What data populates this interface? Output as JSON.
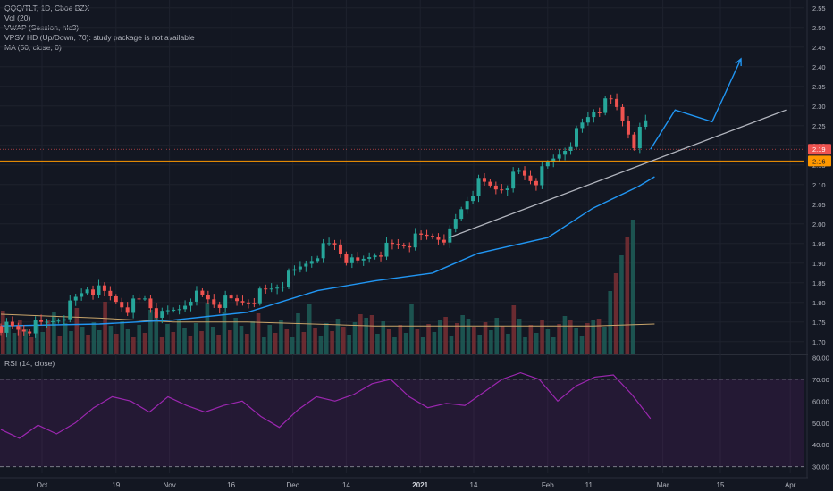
{
  "legend": {
    "symbol": "QQQ/TLT, 1D, Cboe BZX",
    "volume": "Vol (20)",
    "vwap": "VWAP (Session, hlc3)",
    "vpsv": "VPSV HD (Up/Down, 70): study package is not available",
    "ma": "MA (50, close, 0)"
  },
  "rsi_legend": "RSI (14, close)",
  "price_tags": {
    "last": "2.19",
    "level": "2.16"
  },
  "colors": {
    "background": "#131722",
    "up": "#26a69a",
    "down": "#ef5350",
    "ma": "#2196f3",
    "trendline": "#b2b5be",
    "hline": "#ff9800",
    "rsi": "#9c27b0",
    "projection": "#2196f3"
  },
  "chart_data": [
    {
      "type": "candlestick",
      "title": "QQQ/TLT, 1D, Cboe BZX",
      "y_axis_ticks": [
        "2.55",
        "2.50",
        "2.45",
        "2.40",
        "2.35",
        "2.30",
        "2.25",
        "2.20",
        "2.15",
        "2.10",
        "2.05",
        "2.00",
        "1.95",
        "1.90",
        "1.85",
        "1.80",
        "1.75",
        "1.70"
      ],
      "x_axis_ticks": [
        "Oct",
        "19",
        "Nov",
        "16",
        "Dec",
        "14",
        "2021",
        "14",
        "Feb",
        "11",
        "Mar",
        "15",
        "Apr"
      ],
      "ylim": [
        1.67,
        2.57
      ],
      "series": [
        {
          "name": "MA (50, close, 0)",
          "points": [
            [
              "2020-09-21",
              1.74
            ],
            [
              "2020-10-15",
              1.745
            ],
            [
              "2020-11-02",
              1.755
            ],
            [
              "2020-11-20",
              1.775
            ],
            [
              "2020-12-07",
              1.83
            ],
            [
              "2020-12-21",
              1.855
            ],
            [
              "2021-01-04",
              1.875
            ],
            [
              "2021-01-15",
              1.925
            ],
            [
              "2021-02-01",
              1.965
            ],
            [
              "2021-02-12",
              2.04
            ],
            [
              "2021-02-23",
              2.095
            ],
            [
              "2021-02-27",
              2.12
            ]
          ]
        },
        {
          "name": "VWAP (Session, hlc3)",
          "points": [
            [
              "2020-09-21",
              1.77
            ],
            [
              "2020-10-15",
              1.76
            ],
            [
              "2020-11-02",
              1.75
            ],
            [
              "2020-11-20",
              1.75
            ],
            [
              "2020-12-21",
              1.74
            ],
            [
              "2021-01-15",
              1.74
            ],
            [
              "2021-02-12",
              1.74
            ],
            [
              "2021-02-27",
              1.745
            ]
          ]
        }
      ],
      "closes": [
        [
          "2020-09-21",
          1.74
        ],
        [
          "2020-09-25",
          1.73
        ],
        [
          "2020-10-01",
          1.74
        ],
        [
          "2020-10-06",
          1.77
        ],
        [
          "2020-10-12",
          1.84
        ],
        [
          "2020-10-16",
          1.82
        ],
        [
          "2020-10-22",
          1.79
        ],
        [
          "2020-10-26",
          1.81
        ],
        [
          "2020-10-30",
          1.76
        ],
        [
          "2020-11-04",
          1.79
        ],
        [
          "2020-11-06",
          1.82
        ],
        [
          "2020-11-10",
          1.81
        ],
        [
          "2020-11-12",
          1.8
        ],
        [
          "2020-11-18",
          1.8
        ],
        [
          "2020-11-25",
          1.83
        ],
        [
          "2020-12-01",
          1.87
        ],
        [
          "2020-12-07",
          1.93
        ],
        [
          "2020-12-11",
          1.95
        ],
        [
          "2020-12-16",
          1.89
        ],
        [
          "2020-12-21",
          1.93
        ],
        [
          "2020-12-28",
          1.95
        ],
        [
          "2021-01-04",
          1.97
        ],
        [
          "2021-01-08",
          1.97
        ],
        [
          "2021-01-12",
          2.06
        ],
        [
          "2021-01-15",
          2.1
        ],
        [
          "2021-01-20",
          2.09
        ],
        [
          "2021-01-25",
          2.13
        ],
        [
          "2021-01-29",
          2.11
        ],
        [
          "2021-02-03",
          2.17
        ],
        [
          "2021-02-08",
          2.23
        ],
        [
          "2021-02-12",
          2.29
        ],
        [
          "2021-02-17",
          2.31
        ],
        [
          "2021-02-22",
          2.21
        ],
        [
          "2021-02-25",
          2.26
        ],
        [
          "2021-02-26",
          2.19
        ]
      ],
      "annotations": {
        "horizontal_line": 2.16,
        "trendline": [
          [
            "2021-01-08",
            1.965
          ],
          [
            "2021-03-31",
            2.29
          ]
        ],
        "projection": [
          [
            "2021-02-26",
            2.19
          ],
          [
            "2021-03-04",
            2.29
          ],
          [
            "2021-03-13",
            2.26
          ],
          [
            "2021-03-20",
            2.42
          ]
        ]
      }
    },
    {
      "type": "line",
      "title": "RSI (14, close)",
      "y_axis_ticks": [
        "80.00",
        "70.00",
        "60.00",
        "50.00",
        "40.00",
        "30.00"
      ],
      "ylim": [
        27,
        81
      ],
      "bands": [
        30,
        70
      ],
      "series": [
        {
          "name": "RSI (14, close)",
          "values": [
            47,
            43,
            49,
            45,
            50,
            57,
            62,
            60,
            55,
            62,
            58,
            55,
            58,
            60,
            53,
            48,
            56,
            62,
            60,
            63,
            68,
            70,
            62,
            57,
            59,
            58,
            64,
            70,
            73,
            70,
            60,
            67,
            71,
            72,
            63,
            52
          ]
        }
      ]
    }
  ]
}
